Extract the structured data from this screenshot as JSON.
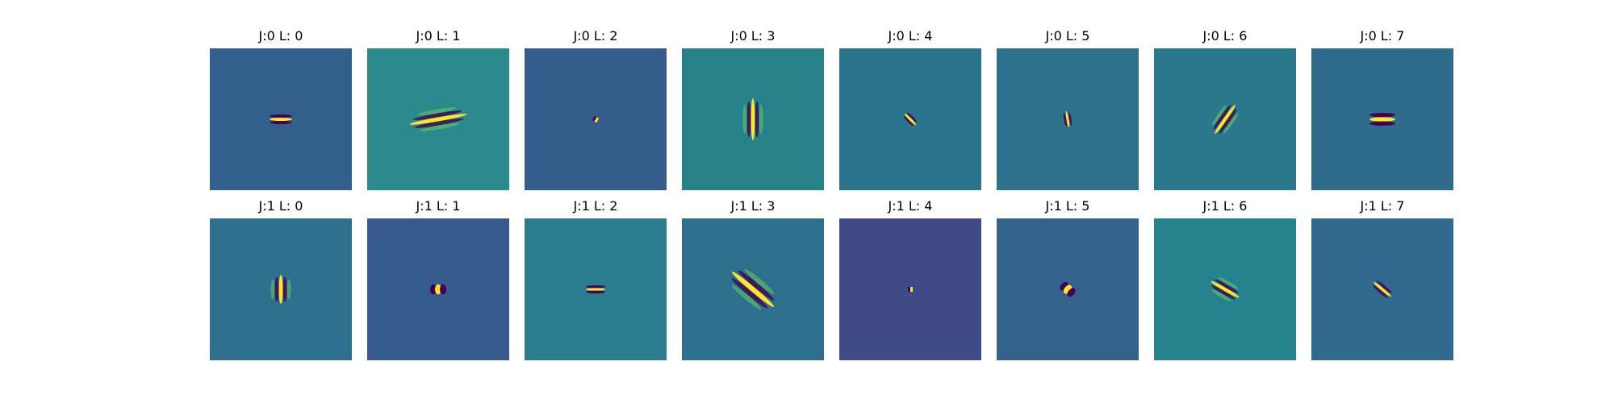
{
  "figure": {
    "rows": [
      {
        "panels": [
          {
            "title": "J:0 L: 0",
            "background": "#32608d",
            "filter": {
              "shape": "horizontal-stripes",
              "length": 14,
              "width": 6,
              "angle": 0,
              "stripes": 3
            }
          },
          {
            "title": "J:0 L: 1",
            "background": "#2b8a8b",
            "filter": {
              "shape": "oriented-stripes",
              "length": 36,
              "width": 8,
              "angle": 80,
              "stripes": 5
            }
          },
          {
            "title": "J:0 L: 2",
            "background": "#355d8c",
            "filter": {
              "shape": "dot",
              "length": 4,
              "width": 3,
              "angle": 30,
              "stripes": 2
            }
          },
          {
            "title": "J:0 L: 3",
            "background": "#268189",
            "filter": {
              "shape": "vertical-stripes",
              "length": 26,
              "width": 8,
              "angle": 90,
              "stripes": 5
            }
          },
          {
            "title": "J:0 L: 4",
            "background": "#2a748c",
            "filter": {
              "shape": "oriented-stripes",
              "length": 10,
              "width": 5,
              "angle": -45,
              "stripes": 3
            }
          },
          {
            "title": "J:0 L: 5",
            "background": "#2d718d",
            "filter": {
              "shape": "oriented-stripes",
              "length": 10,
              "width": 5,
              "angle": -10,
              "stripes": 3
            }
          },
          {
            "title": "J:0 L: 6",
            "background": "#2b778c",
            "filter": {
              "shape": "oriented-stripes",
              "length": 22,
              "width": 7,
              "angle": 35,
              "stripes": 5
            }
          },
          {
            "title": "J:0 L: 7",
            "background": "#2f6b8d",
            "filter": {
              "shape": "horizontal-stripes",
              "length": 16,
              "width": 8,
              "angle": 0,
              "stripes": 3
            }
          }
        ]
      },
      {
        "panels": [
          {
            "title": "J:1 L: 0",
            "background": "#2e6f8e",
            "filter": {
              "shape": "vertical-stripes",
              "length": 18,
              "width": 8,
              "angle": 90,
              "stripes": 5
            }
          },
          {
            "title": "J:1 L: 1",
            "background": "#375a8c",
            "filter": {
              "shape": "blobs",
              "length": 10,
              "width": 6,
              "angle": 0,
              "stripes": 3
            }
          },
          {
            "title": "J:1 L: 2",
            "background": "#2a7c8e",
            "filter": {
              "shape": "horizontal-stripes",
              "length": 12,
              "width": 5,
              "angle": 0,
              "stripes": 3
            }
          },
          {
            "title": "J:1 L: 3",
            "background": "#2f6f8e",
            "filter": {
              "shape": "oriented-stripes",
              "length": 34,
              "width": 10,
              "angle": -50,
              "stripes": 5
            }
          },
          {
            "title": "J:1 L: 4",
            "background": "#404a87",
            "filter": {
              "shape": "dot",
              "length": 4,
              "width": 3,
              "angle": 0,
              "stripes": 2
            }
          },
          {
            "title": "J:1 L: 5",
            "background": "#33638d",
            "filter": {
              "shape": "blobs",
              "length": 10,
              "width": 6,
              "angle": 40,
              "stripes": 3
            }
          },
          {
            "title": "J:1 L: 6",
            "background": "#26838e",
            "filter": {
              "shape": "oriented-stripes",
              "length": 20,
              "width": 7,
              "angle": -60,
              "stripes": 5
            }
          },
          {
            "title": "J:1 L: 7",
            "background": "#306a8e",
            "filter": {
              "shape": "oriented-stripes",
              "length": 14,
              "width": 6,
              "angle": -50,
              "stripes": 3
            }
          }
        ]
      }
    ],
    "colors": {
      "dark": "#440154",
      "bright": "#fde725",
      "mid": "#21918c",
      "light": "#5ec962"
    }
  }
}
